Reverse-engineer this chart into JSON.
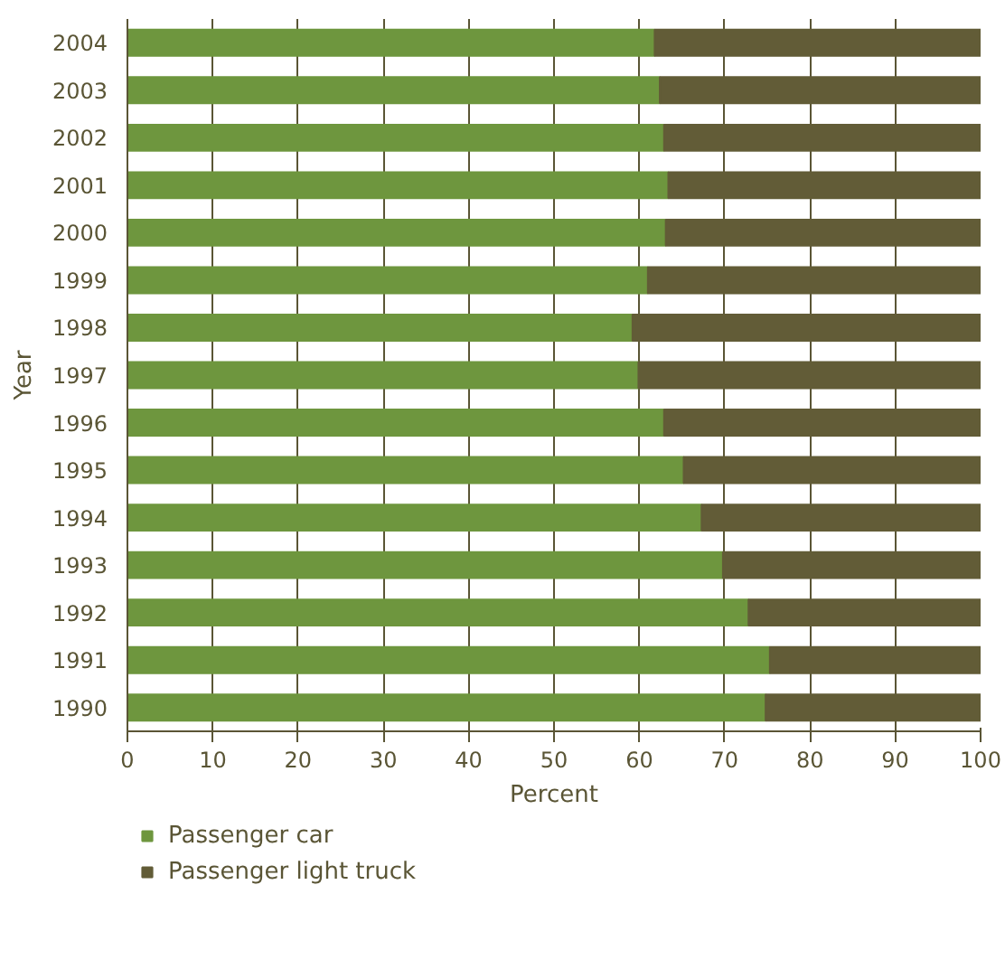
{
  "chart_data": {
    "type": "bar",
    "orientation": "horizontal",
    "stacked": true,
    "xlabel": "Percent",
    "ylabel": "Year",
    "categories": [
      "2004",
      "2003",
      "2002",
      "2001",
      "2000",
      "1999",
      "1998",
      "1997",
      "1996",
      "1995",
      "1994",
      "1993",
      "1992",
      "1991",
      "1990"
    ],
    "series": [
      {
        "name": "Passenger car",
        "color": "#6e963e",
        "values": [
          61.8,
          62.4,
          62.9,
          63.4,
          63.1,
          61.0,
          59.2,
          59.9,
          62.9,
          65.2,
          67.3,
          69.8,
          72.8,
          75.3,
          74.8
        ]
      },
      {
        "name": "Passenger light truck",
        "color": "#625c37",
        "values": [
          38.2,
          37.6,
          37.1,
          36.6,
          36.9,
          39.0,
          40.8,
          40.1,
          37.1,
          34.8,
          32.7,
          30.2,
          27.2,
          24.7,
          25.2
        ]
      }
    ],
    "xlim": [
      0,
      100
    ],
    "xticks": [
      0,
      10,
      20,
      30,
      40,
      50,
      60,
      70,
      80,
      90,
      100
    ],
    "grid": "x",
    "legend": "bottom"
  }
}
